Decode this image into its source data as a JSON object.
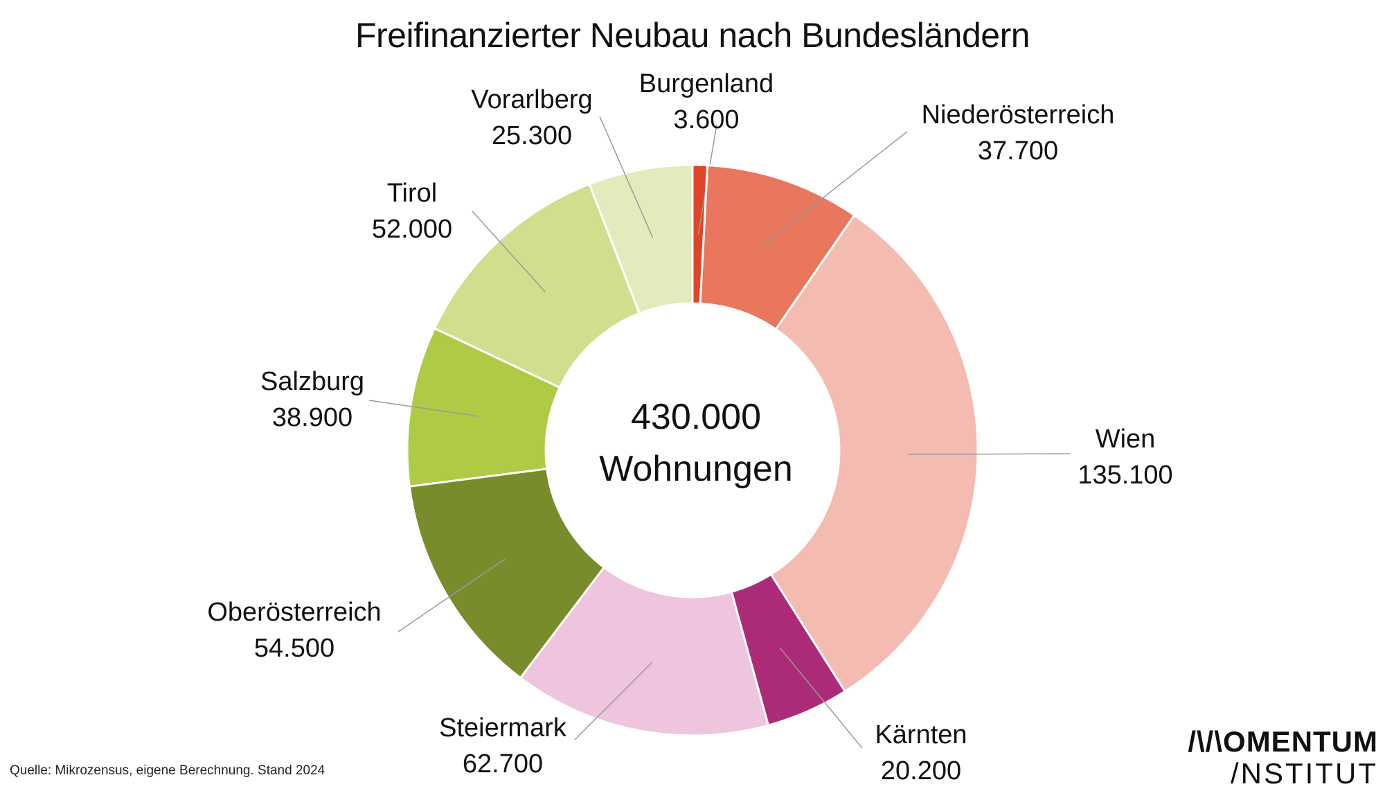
{
  "chart_data": {
    "type": "pie",
    "style": "donut",
    "title": "Freifinanzierter Neubau nach Bundesländern",
    "center_text": {
      "value": "430.000",
      "label": "Wohnungen"
    },
    "unit": "Wohnungen",
    "slices": [
      {
        "name": "Burgenland",
        "value": 3600,
        "display": "3.600",
        "color": "#e0452a"
      },
      {
        "name": "Niederösterreich",
        "value": 37700,
        "display": "37.700",
        "color": "#e9775d"
      },
      {
        "name": "Wien",
        "value": 135100,
        "display": "135.100",
        "color": "#f4bbb0"
      },
      {
        "name": "Kärnten",
        "value": 20200,
        "display": "20.200",
        "color": "#ac2b79"
      },
      {
        "name": "Steiermark",
        "value": 62700,
        "display": "62.700",
        "color": "#efc4de"
      },
      {
        "name": "Oberösterreich",
        "value": 54500,
        "display": "54.500",
        "color": "#788c2c"
      },
      {
        "name": "Salzburg",
        "value": 38900,
        "display": "38.900",
        "color": "#afca45"
      },
      {
        "name": "Tirol",
        "value": 52000,
        "display": "52.000",
        "color": "#d0de8d"
      },
      {
        "name": "Vorarlberg",
        "value": 25300,
        "display": "25.300",
        "color": "#e3ebbd"
      }
    ]
  },
  "footer": {
    "source": "Quelle: Mikrozensus, eigene Berechnung. Stand 2024",
    "logo_line1": "/\\/\\OMENTUM",
    "logo_line2": "/NSTITUT"
  }
}
